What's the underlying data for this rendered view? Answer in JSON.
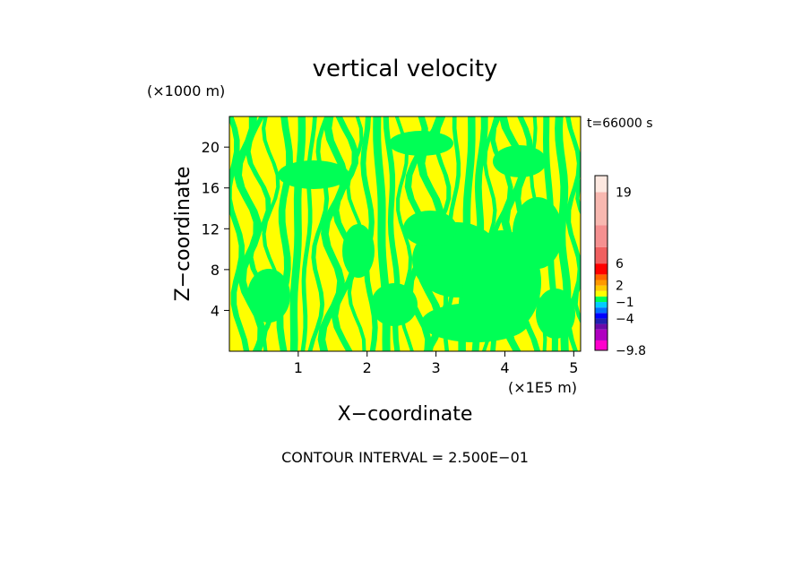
{
  "chart_data": {
    "type": "heatmap",
    "title": "vertical velocity",
    "xlabel": "X−coordinate",
    "ylabel": "Z−coordinate",
    "x_unit": "(×1E5 m)",
    "z_unit": "(×1000 m)",
    "time_label": "t=66000 s",
    "contour_interval": "CONTOUR INTERVAL = 2.500E−01",
    "xlim": [
      0,
      5.1
    ],
    "ylim": [
      0,
      23
    ],
    "x_ticks": [
      1,
      2,
      3,
      4,
      5
    ],
    "z_ticks": [
      4,
      8,
      12,
      16,
      20
    ],
    "field_colors": {
      "positive": "#ffff00",
      "negative": "#00ff55"
    },
    "colorbar": {
      "min": -9.8,
      "max": 22,
      "labels": [
        "19",
        "6",
        "2",
        "−1",
        "−4",
        "−9.8"
      ],
      "label_values": [
        19,
        6,
        2,
        -1,
        -4,
        -9.8
      ],
      "segments": [
        {
          "from": -9.8,
          "to": -8,
          "color": "#ff00cc"
        },
        {
          "from": -8,
          "to": -6,
          "color": "#b000c0"
        },
        {
          "from": -6,
          "to": -5,
          "color": "#6a0aa8"
        },
        {
          "from": -5,
          "to": -4,
          "color": "#2020b0"
        },
        {
          "from": -4,
          "to": -3,
          "color": "#0000ff"
        },
        {
          "from": -3,
          "to": -2,
          "color": "#0070ff"
        },
        {
          "from": -2,
          "to": -1,
          "color": "#00ccff"
        },
        {
          "from": -1,
          "to": 0,
          "color": "#00ff55"
        },
        {
          "from": 0,
          "to": 1,
          "color": "#ffff00"
        },
        {
          "from": 1,
          "to": 2,
          "color": "#ffcc00"
        },
        {
          "from": 2,
          "to": 3,
          "color": "#ff9900"
        },
        {
          "from": 3,
          "to": 4,
          "color": "#ff6600"
        },
        {
          "from": 4,
          "to": 6,
          "color": "#ff0000"
        },
        {
          "from": 6,
          "to": 9,
          "color": "#f06060"
        },
        {
          "from": 9,
          "to": 13,
          "color": "#f59090"
        },
        {
          "from": 13,
          "to": 19,
          "color": "#f8b8b0"
        },
        {
          "from": 19,
          "to": 22,
          "color": "#fde8e0"
        }
      ]
    }
  }
}
